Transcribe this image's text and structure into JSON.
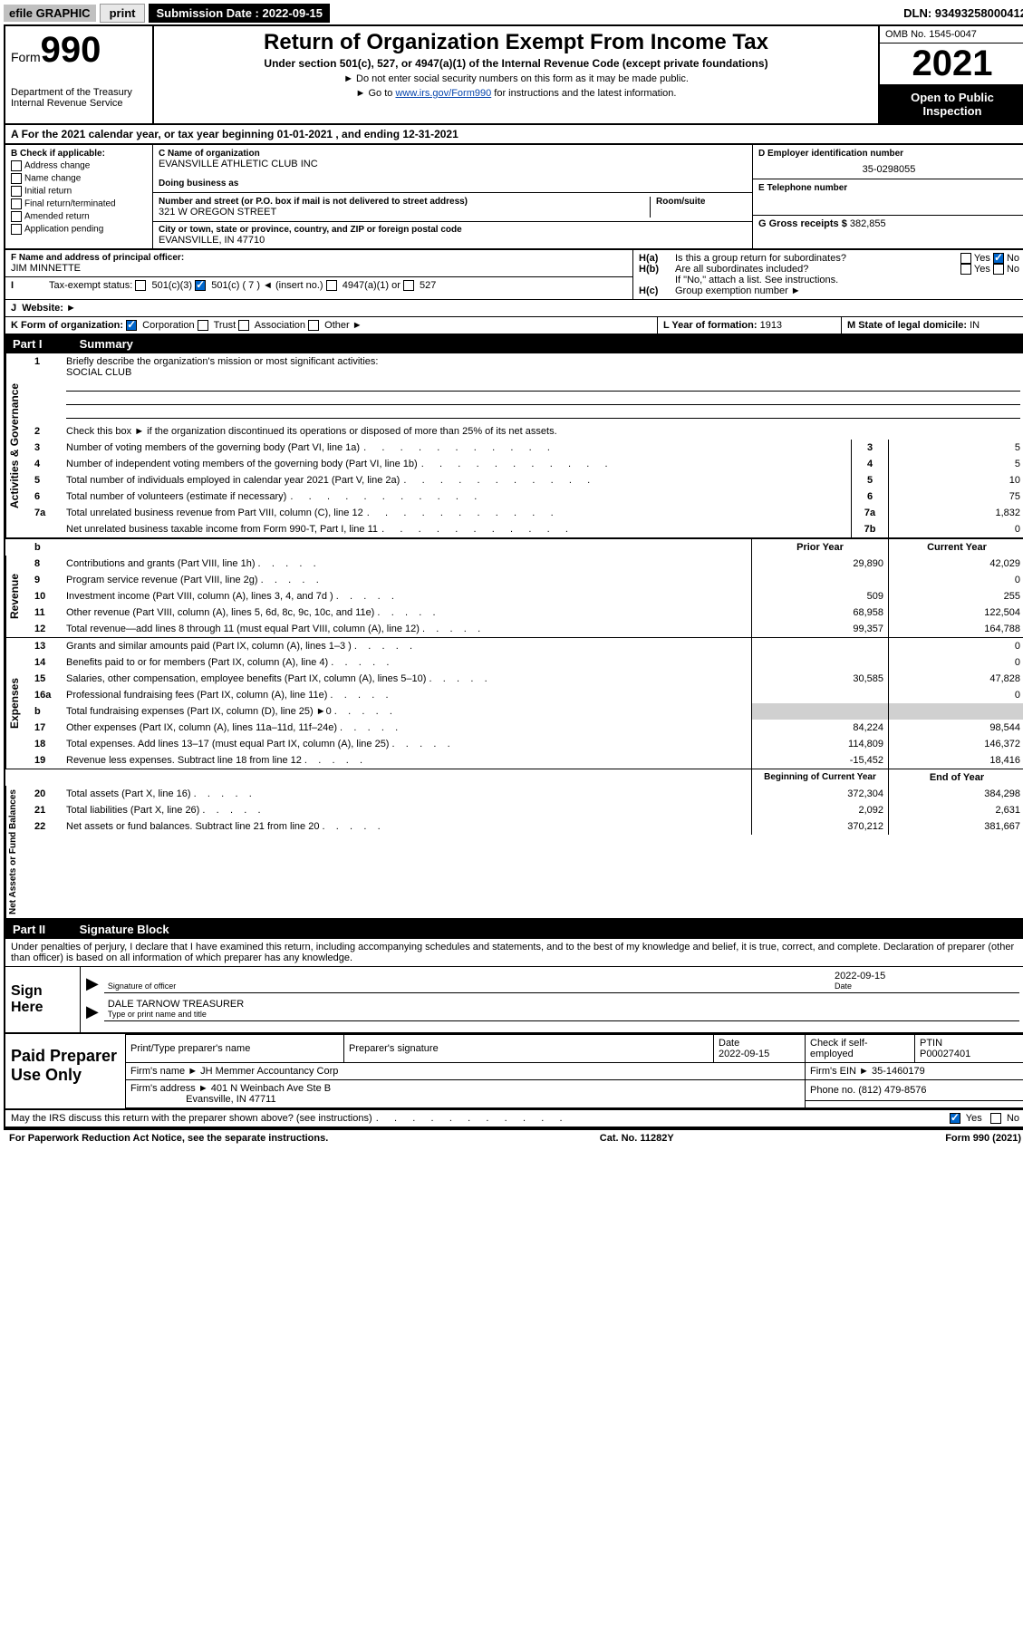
{
  "topbar": {
    "efile": "efile GRAPHIC",
    "print": "print",
    "sub_date_label": "Submission Date : 2022-09-15",
    "dln": "DLN: 93493258000412"
  },
  "header": {
    "form_word": "Form",
    "form_num": "990",
    "dept": "Department of the Treasury Internal Revenue Service",
    "title": "Return of Organization Exempt From Income Tax",
    "sub": "Under section 501(c), 527, or 4947(a)(1) of the Internal Revenue Code (except private foundations)",
    "note_ssn": "Do not enter social security numbers on this form as it may be made public.",
    "note_link_pre": "Go to ",
    "note_link": "www.irs.gov/Form990",
    "note_link_post": " for instructions and the latest information.",
    "omb": "OMB No. 1545-0047",
    "year": "2021",
    "open": "Open to Public Inspection"
  },
  "section_a": {
    "text": "For the 2021 calendar year, or tax year beginning 01-01-2021    , and ending 12-31-2021"
  },
  "col_b": {
    "label": "B Check if applicable:",
    "opts": [
      "Address change",
      "Name change",
      "Initial return",
      "Final return/terminated",
      "Amended return",
      "Application pending"
    ]
  },
  "org": {
    "c_label": "C Name of organization",
    "name": "EVANSVILLE ATHLETIC CLUB INC",
    "dba_label": "Doing business as",
    "dba": "",
    "addr_label": "Number and street (or P.O. box if mail is not delivered to street address)",
    "room_label": "Room/suite",
    "addr": "321 W OREGON STREET",
    "city_label": "City or town, state or province, country, and ZIP or foreign postal code",
    "city": "EVANSVILLE, IN  47710"
  },
  "right_col": {
    "d_label": "D Employer identification number",
    "ein": "35-0298055",
    "e_label": "E Telephone number",
    "phone": "",
    "g_label": "G Gross receipts $",
    "gross": "382,855"
  },
  "officer": {
    "f_label": "F  Name and address of principal officer:",
    "name": "JIM MINNETTE"
  },
  "h_block": {
    "ha": "Is this a group return for subordinates?",
    "hb": "Are all subordinates included?",
    "hb_note": "If \"No,\" attach a list. See instructions.",
    "hc": "Group exemption number ►",
    "yes": "Yes",
    "no": "No"
  },
  "status": {
    "i_label": "Tax-exempt status:",
    "c3": "501(c)(3)",
    "c_blank": "501(c) ( 7 ) ◄ (insert no.)",
    "a4947": "4947(a)(1) or",
    "s527": "527"
  },
  "website": {
    "j_label": "Website: ►",
    "val": ""
  },
  "k_row": {
    "label": "K Form of organization:",
    "corp": "Corporation",
    "trust": "Trust",
    "assoc": "Association",
    "other": "Other ►"
  },
  "l_row": {
    "label": "L Year of formation:",
    "val": "1913"
  },
  "m_row": {
    "label": "M State of legal domicile:",
    "val": "IN"
  },
  "part1": {
    "label": "Part I",
    "title": "Summary"
  },
  "q1": {
    "num": "1",
    "text": "Briefly describe the organization's mission or most significant activities:",
    "ans": "SOCIAL CLUB"
  },
  "q2": {
    "num": "2",
    "text": "Check this box ►     if the organization discontinued its operations or disposed of more than 25% of its net assets."
  },
  "rows_gov": [
    {
      "n": "3",
      "t": "Number of voting members of the governing body (Part VI, line 1a)",
      "rn": "3",
      "v": "5"
    },
    {
      "n": "4",
      "t": "Number of independent voting members of the governing body (Part VI, line 1b)",
      "rn": "4",
      "v": "5"
    },
    {
      "n": "5",
      "t": "Total number of individuals employed in calendar year 2021 (Part V, line 2a)",
      "rn": "5",
      "v": "10"
    },
    {
      "n": "6",
      "t": "Total number of volunteers (estimate if necessary)",
      "rn": "6",
      "v": "75"
    },
    {
      "n": "7a",
      "t": "Total unrelated business revenue from Part VIII, column (C), line 12",
      "rn": "7a",
      "v": "1,832"
    },
    {
      "n": "",
      "t": "Net unrelated business taxable income from Form 990-T, Part I, line 11",
      "rn": "7b",
      "v": "0"
    }
  ],
  "col_hdr": {
    "b": "b",
    "prior": "Prior Year",
    "current": "Current Year"
  },
  "rows_rev": [
    {
      "n": "8",
      "t": "Contributions and grants (Part VIII, line 1h)",
      "p": "29,890",
      "c": "42,029"
    },
    {
      "n": "9",
      "t": "Program service revenue (Part VIII, line 2g)",
      "p": "",
      "c": "0"
    },
    {
      "n": "10",
      "t": "Investment income (Part VIII, column (A), lines 3, 4, and 7d )",
      "p": "509",
      "c": "255"
    },
    {
      "n": "11",
      "t": "Other revenue (Part VIII, column (A), lines 5, 6d, 8c, 9c, 10c, and 11e)",
      "p": "68,958",
      "c": "122,504"
    },
    {
      "n": "12",
      "t": "Total revenue—add lines 8 through 11 (must equal Part VIII, column (A), line 12)",
      "p": "99,357",
      "c": "164,788"
    }
  ],
  "rows_exp": [
    {
      "n": "13",
      "t": "Grants and similar amounts paid (Part IX, column (A), lines 1–3 )",
      "p": "",
      "c": "0"
    },
    {
      "n": "14",
      "t": "Benefits paid to or for members (Part IX, column (A), line 4)",
      "p": "",
      "c": "0"
    },
    {
      "n": "15",
      "t": "Salaries, other compensation, employee benefits (Part IX, column (A), lines 5–10)",
      "p": "30,585",
      "c": "47,828"
    },
    {
      "n": "16a",
      "t": "Professional fundraising fees (Part IX, column (A), line 11e)",
      "p": "",
      "c": "0"
    },
    {
      "n": "b",
      "t": "Total fundraising expenses (Part IX, column (D), line 25) ►0",
      "p": "GREY",
      "c": "GREY"
    },
    {
      "n": "17",
      "t": "Other expenses (Part IX, column (A), lines 11a–11d, 11f–24e)",
      "p": "84,224",
      "c": "98,544"
    },
    {
      "n": "18",
      "t": "Total expenses. Add lines 13–17 (must equal Part IX, column (A), line 25)",
      "p": "114,809",
      "c": "146,372"
    },
    {
      "n": "19",
      "t": "Revenue less expenses. Subtract line 18 from line 12",
      "p": "-15,452",
      "c": "18,416"
    }
  ],
  "na_hdr": {
    "begin": "Beginning of Current Year",
    "end": "End of Year"
  },
  "rows_na": [
    {
      "n": "20",
      "t": "Total assets (Part X, line 16)",
      "p": "372,304",
      "c": "384,298"
    },
    {
      "n": "21",
      "t": "Total liabilities (Part X, line 26)",
      "p": "2,092",
      "c": "2,631"
    },
    {
      "n": "22",
      "t": "Net assets or fund balances. Subtract line 21 from line 20",
      "p": "370,212",
      "c": "381,667"
    }
  ],
  "vert": {
    "gov": "Activities & Governance",
    "rev": "Revenue",
    "exp": "Expenses",
    "na": "Net Assets or Fund Balances"
  },
  "part2": {
    "label": "Part II",
    "title": "Signature Block"
  },
  "sig_decl": "Under penalties of perjury, I declare that I have examined this return, including accompanying schedules and statements, and to the best of my knowledge and belief, it is true, correct, and complete. Declaration of preparer (other than officer) is based on all information of which preparer has any knowledge.",
  "sign": {
    "here": "Sign Here",
    "off_sig": "Signature of officer",
    "date": "Date",
    "date_val": "2022-09-15",
    "name": "DALE TARNOW TREASURER",
    "name_label": "Type or print name and title"
  },
  "prep": {
    "title": "Paid Preparer Use Only",
    "h_name": "Print/Type preparer's name",
    "h_sig": "Preparer's signature",
    "h_date": "Date",
    "date_val": "2022-09-15",
    "h_check": "Check     if self-employed",
    "h_ptin": "PTIN",
    "ptin": "P00027401",
    "firm_name_l": "Firm's name      ►",
    "firm_name": "JH Memmer Accountancy Corp",
    "firm_ein_l": "Firm's EIN ►",
    "firm_ein": "35-1460179",
    "firm_addr_l": "Firm's address ►",
    "firm_addr1": "401 N Weinbach Ave Ste B",
    "firm_addr2": "Evansville, IN  47711",
    "phone_l": "Phone no.",
    "phone": "(812) 479-8576"
  },
  "discuss": {
    "text": "May the IRS discuss this return with the preparer shown above? (see instructions)",
    "yes": "Yes",
    "no": "No"
  },
  "footer": {
    "left": "For Paperwork Reduction Act Notice, see the separate instructions.",
    "mid": "Cat. No. 11282Y",
    "right": "Form 990 (2021)"
  }
}
